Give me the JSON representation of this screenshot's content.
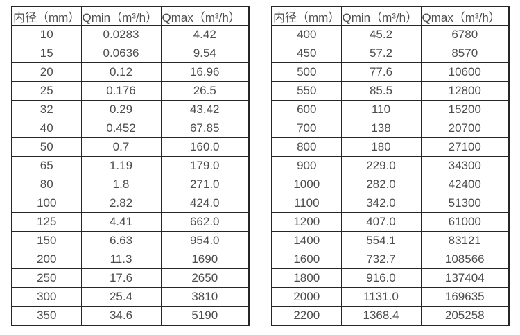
{
  "colors": {
    "background": "#ffffff",
    "border": "#262626",
    "text": "#4d4d4d"
  },
  "tables": [
    {
      "name": "flow-rate-table-small-diameters",
      "headers": [
        "内径（mm）",
        "Qmin（m³/h）",
        "Qmax（m³/h）"
      ],
      "rows": [
        [
          "10",
          "0.0283",
          "4.42"
        ],
        [
          "15",
          "0.0636",
          "9.54"
        ],
        [
          "20",
          "0.12",
          "16.96"
        ],
        [
          "25",
          "0.176",
          "26.5"
        ],
        [
          "32",
          "0.29",
          "43.42"
        ],
        [
          "40",
          "0.452",
          "67.85"
        ],
        [
          "50",
          "0.7",
          "160.0"
        ],
        [
          "65",
          "1.19",
          "179.0"
        ],
        [
          "80",
          "1.8",
          "271.0"
        ],
        [
          "100",
          "2.82",
          "424.0"
        ],
        [
          "125",
          "4.41",
          "662.0"
        ],
        [
          "150",
          "6.63",
          "954.0"
        ],
        [
          "200",
          "11.3",
          "1690"
        ],
        [
          "250",
          "17.6",
          "2650"
        ],
        [
          "300",
          "25.4",
          "3810"
        ],
        [
          "350",
          "34.6",
          "5190"
        ]
      ]
    },
    {
      "name": "flow-rate-table-large-diameters",
      "headers": [
        "内径（mm）",
        "Qmin（m³/h）",
        "Qmax（m³/h）"
      ],
      "rows": [
        [
          "400",
          "45.2",
          "6780"
        ],
        [
          "450",
          "57.2",
          "8570"
        ],
        [
          "500",
          "77.6",
          "10600"
        ],
        [
          "550",
          "85.5",
          "12800"
        ],
        [
          "600",
          "110",
          "15200"
        ],
        [
          "700",
          "138",
          "20700"
        ],
        [
          "800",
          "180",
          "27100"
        ],
        [
          "900",
          "229.0",
          "34300"
        ],
        [
          "1000",
          "282.0",
          "42400"
        ],
        [
          "1100",
          "342.0",
          "51300"
        ],
        [
          "1200",
          "407.0",
          "61000"
        ],
        [
          "1400",
          "554.1",
          "83121"
        ],
        [
          "1600",
          "732.7",
          "108566"
        ],
        [
          "1800",
          "916.0",
          "137404"
        ],
        [
          "2000",
          "1131.0",
          "169635"
        ],
        [
          "2200",
          "1368.4",
          "205258"
        ]
      ]
    }
  ]
}
